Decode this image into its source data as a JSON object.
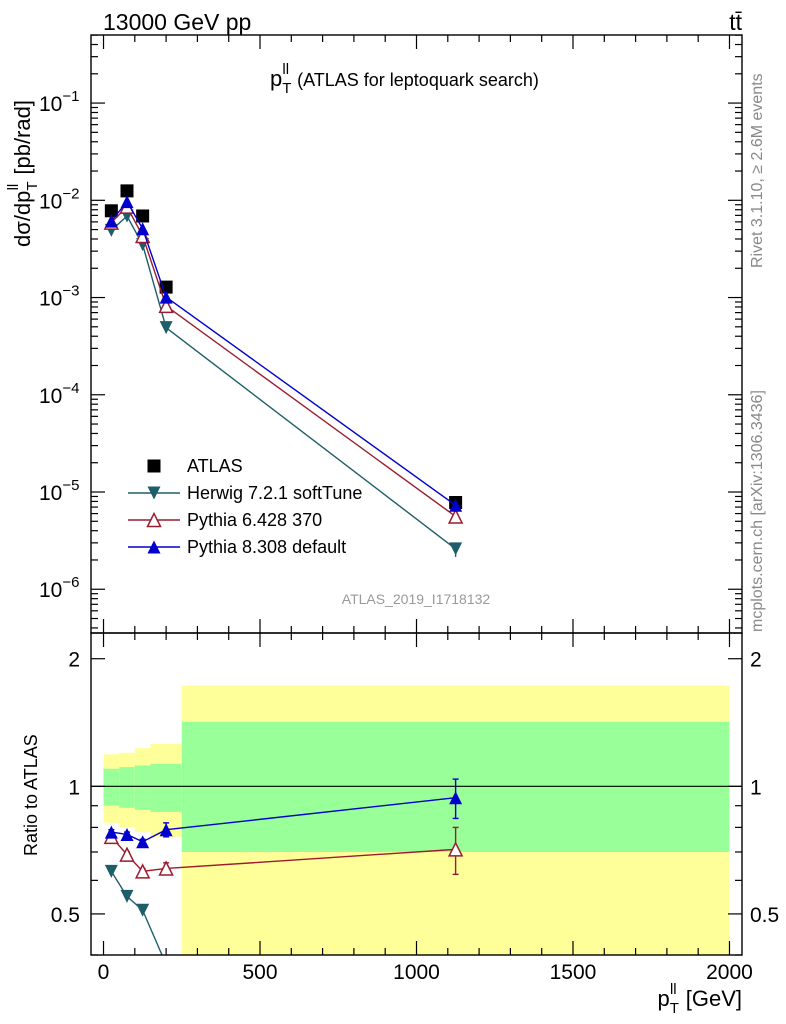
{
  "header": {
    "left": "13000 GeV pp",
    "right": "tt̄"
  },
  "sidebar": {
    "rivet": "Rivet 3.1.10, ≥ 2.6M events",
    "mcplots": "mcplots.cern.ch [arXiv:1306.3436]"
  },
  "watermark": "ATLAS_2019_I1718132",
  "colors": {
    "data": "#000000",
    "herwig": "#1e5e6a",
    "pythia6": "#9b1c2e",
    "pythia8": "#0000cc",
    "band_outer": "#ffff99",
    "band_inner": "#99ff99"
  },
  "chart_data": [
    {
      "type": "scatter",
      "title": "p_T^ll (ATLAS for leptoquark search)",
      "title_main": "p",
      "title_sub": "T",
      "title_sup": "ll",
      "title_rest": " (ATLAS for leptoquark search)",
      "ylabel": "dσ/dp_T^ll [pb/rad]",
      "ylabel_main": "dσ/dp",
      "ylabel_sub": "T",
      "ylabel_sup": "ll",
      "ylabel_rest": " [pb/rad]",
      "xlim": [
        -40,
        2040
      ],
      "ylim_log": [
        -6.45,
        -0.3
      ],
      "yscale": "log",
      "yticks": [
        {
          "exp": -1,
          "label": "10",
          "sup": "−1"
        },
        {
          "exp": -2,
          "label": "10",
          "sup": "−2"
        },
        {
          "exp": -3,
          "label": "10",
          "sup": "−3"
        },
        {
          "exp": -4,
          "label": "10",
          "sup": "−4"
        },
        {
          "exp": -5,
          "label": "10",
          "sup": "−5"
        },
        {
          "exp": -6,
          "label": "10",
          "sup": "−6"
        }
      ],
      "legend_position": "bottom-left",
      "series": [
        {
          "name": "ATLAS",
          "marker": "square",
          "x": [
            25,
            75,
            125,
            200,
            1125
          ],
          "y": [
            0.0078,
            0.0125,
            0.0069,
            0.00128,
            7.8e-06
          ]
        },
        {
          "name": "Herwig 7.2.1 softTune",
          "marker": "triangle-down",
          "x": [
            25,
            75,
            125,
            200,
            1125
          ],
          "y": [
            0.0049,
            0.0069,
            0.0035,
            0.00049,
            2.6e-06
          ]
        },
        {
          "name": "Pythia 6.428 370",
          "marker": "triangle-up-open",
          "x": [
            25,
            75,
            125,
            200,
            1125
          ],
          "y": [
            0.0059,
            0.0086,
            0.0043,
            0.00082,
            5.6e-06
          ]
        },
        {
          "name": "Pythia 8.308 default",
          "marker": "triangle-up",
          "x": [
            25,
            75,
            125,
            200,
            1125
          ],
          "y": [
            0.0061,
            0.0097,
            0.0051,
            0.00101,
            7.3e-06
          ]
        }
      ]
    },
    {
      "type": "scatter",
      "ylabel": "Ratio to ATLAS",
      "xlabel": "p_T^ll [GeV]",
      "xlabel_main": "p",
      "xlabel_sub": "T",
      "xlabel_sup": "ll",
      "xlabel_rest": " [GeV]",
      "xlim": [
        -40,
        2040
      ],
      "ylim": [
        0.4,
        2.3
      ],
      "yscale": "log",
      "xticks": [
        0,
        500,
        1000,
        1500,
        2000
      ],
      "yticks": [
        0.5,
        1,
        2
      ],
      "reference_line": 1,
      "bands": [
        {
          "x": [
            0,
            50
          ],
          "outer": [
            0.82,
            1.19
          ],
          "inner": [
            0.9,
            1.1
          ]
        },
        {
          "x": [
            50,
            100
          ],
          "outer": [
            0.8,
            1.2
          ],
          "inner": [
            0.89,
            1.11
          ]
        },
        {
          "x": [
            100,
            150
          ],
          "outer": [
            0.78,
            1.23
          ],
          "inner": [
            0.88,
            1.12
          ]
        },
        {
          "x": [
            150,
            250
          ],
          "outer": [
            0.76,
            1.26
          ],
          "inner": [
            0.87,
            1.13
          ]
        },
        {
          "x": [
            250,
            2000
          ],
          "outer": [
            0.37,
            1.73
          ],
          "inner": [
            0.7,
            1.42
          ]
        }
      ],
      "series": [
        {
          "name": "Herwig 7.2.1 softTune",
          "x": [
            25,
            75,
            125,
            200
          ],
          "y": [
            0.63,
            0.55,
            0.51,
            0.38
          ],
          "err": [
            0,
            0,
            0,
            0
          ]
        },
        {
          "name": "Pythia 6.428 370",
          "x": [
            25,
            75,
            125,
            200,
            1125
          ],
          "y": [
            0.76,
            0.69,
            0.63,
            0.64,
            0.71
          ],
          "err": [
            0.01,
            0.01,
            0.01,
            0.02,
            0.09
          ]
        },
        {
          "name": "Pythia 8.308 default",
          "x": [
            25,
            75,
            125,
            200,
            1125
          ],
          "y": [
            0.78,
            0.77,
            0.74,
            0.79,
            0.94
          ],
          "err": [
            0.01,
            0.01,
            0.01,
            0.03,
            0.1
          ]
        }
      ]
    }
  ]
}
